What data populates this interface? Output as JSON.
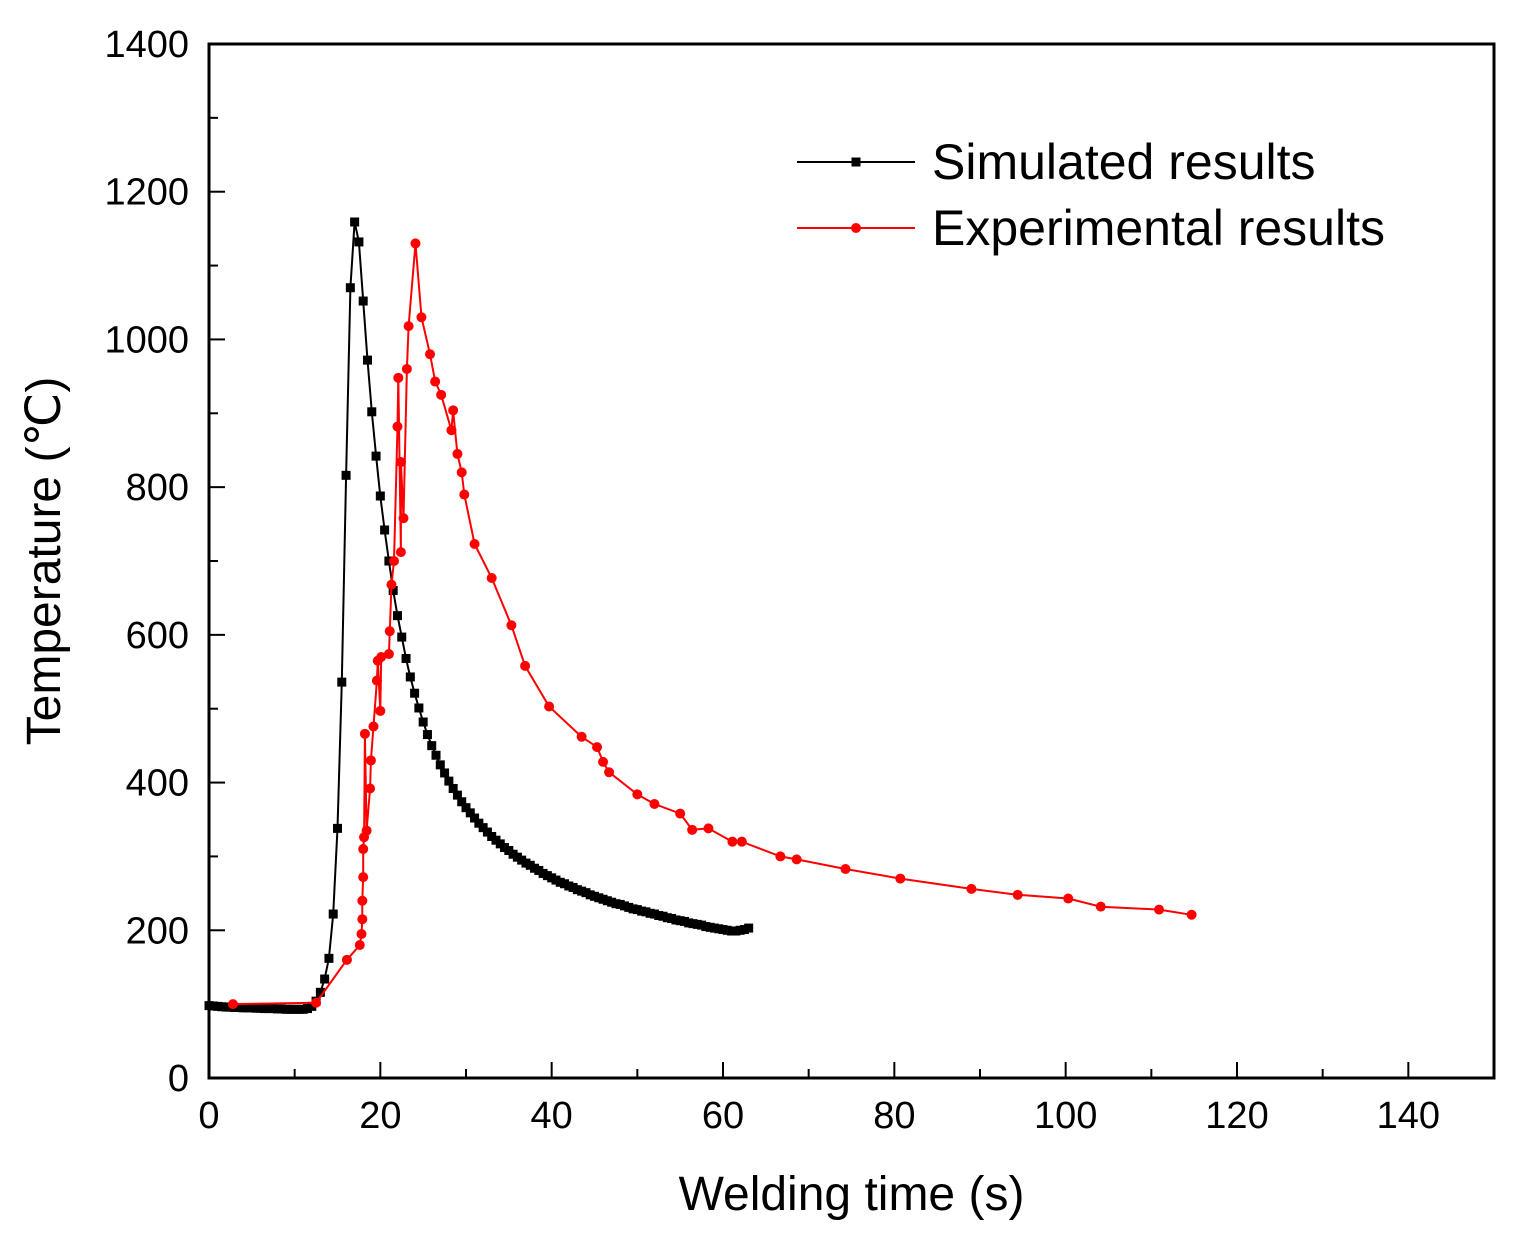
{
  "chart_data": {
    "type": "line",
    "title": "",
    "xlabel": "Welding time (s)",
    "ylabel": "Temperature (℃)",
    "xlim": [
      0,
      150
    ],
    "ylim": [
      0,
      1400
    ],
    "x_major_ticks": [
      0,
      20,
      40,
      60,
      80,
      100,
      120,
      140
    ],
    "y_major_ticks": [
      0,
      200,
      400,
      600,
      800,
      1000,
      1200,
      1400
    ],
    "grid": false,
    "legend_position": "top-right",
    "colors": {
      "simulated": "#000000",
      "experimental": "#ff0000"
    },
    "series": [
      {
        "name": "Simulated results",
        "marker": "square",
        "color": "#000000",
        "points": [
          [
            0,
            98
          ],
          [
            0.5,
            97.5
          ],
          [
            1,
            97
          ],
          [
            1.5,
            96.5
          ],
          [
            2,
            96
          ],
          [
            2.5,
            96
          ],
          [
            3,
            95.5
          ],
          [
            3.5,
            95.5
          ],
          [
            4,
            95
          ],
          [
            4.5,
            95
          ],
          [
            5,
            95
          ],
          [
            5.5,
            94.5
          ],
          [
            6,
            94.5
          ],
          [
            6.5,
            94
          ],
          [
            7,
            94
          ],
          [
            7.5,
            94
          ],
          [
            8,
            93.5
          ],
          [
            8.5,
            93.5
          ],
          [
            9,
            93
          ],
          [
            9.5,
            93
          ],
          [
            10,
            93
          ],
          [
            10.5,
            93
          ],
          [
            11,
            93
          ],
          [
            11.5,
            94
          ],
          [
            12,
            97
          ],
          [
            12.5,
            104
          ],
          [
            13,
            116
          ],
          [
            13.5,
            134
          ],
          [
            14,
            162
          ],
          [
            14.5,
            222
          ],
          [
            15,
            338
          ],
          [
            15.5,
            536
          ],
          [
            16,
            816
          ],
          [
            16.5,
            1070
          ],
          [
            17,
            1159
          ],
          [
            17.5,
            1132
          ],
          [
            18,
            1052
          ],
          [
            18.5,
            972
          ],
          [
            19,
            902
          ],
          [
            19.5,
            842
          ],
          [
            20,
            788
          ],
          [
            20.5,
            742
          ],
          [
            21,
            700
          ],
          [
            21.5,
            660
          ],
          [
            22,
            626
          ],
          [
            22.5,
            597
          ],
          [
            23,
            568
          ],
          [
            23.5,
            543
          ],
          [
            24,
            521
          ],
          [
            24.5,
            501
          ],
          [
            25,
            482
          ],
          [
            25.5,
            465
          ],
          [
            26,
            450
          ],
          [
            26.5,
            437
          ],
          [
            27,
            424
          ],
          [
            27.5,
            413
          ],
          [
            28,
            402
          ],
          [
            28.5,
            392
          ],
          [
            29,
            383
          ],
          [
            29.5,
            374
          ],
          [
            30,
            366
          ],
          [
            30.5,
            359
          ],
          [
            31,
            352
          ],
          [
            31.5,
            345
          ],
          [
            32,
            339
          ],
          [
            32.5,
            333
          ],
          [
            33,
            327
          ],
          [
            33.5,
            322
          ],
          [
            34,
            317
          ],
          [
            34.5,
            312
          ],
          [
            35,
            308
          ],
          [
            35.5,
            303
          ],
          [
            36,
            299
          ],
          [
            36.5,
            295
          ],
          [
            37,
            291
          ],
          [
            37.5,
            288
          ],
          [
            38,
            284
          ],
          [
            38.5,
            281
          ],
          [
            39,
            277
          ],
          [
            39.5,
            274
          ],
          [
            40,
            271
          ],
          [
            40.5,
            268
          ],
          [
            41,
            265
          ],
          [
            41.5,
            263
          ],
          [
            42,
            260
          ],
          [
            42.5,
            258
          ],
          [
            43,
            255
          ],
          [
            43.5,
            253
          ],
          [
            44,
            251
          ],
          [
            44.5,
            248
          ],
          [
            45,
            246
          ],
          [
            45.5,
            244
          ],
          [
            46,
            242
          ],
          [
            46.5,
            240
          ],
          [
            47,
            238
          ],
          [
            47.5,
            236
          ],
          [
            48,
            235
          ],
          [
            48.5,
            233
          ],
          [
            49,
            231
          ],
          [
            49.5,
            229
          ],
          [
            50,
            228
          ],
          [
            50.5,
            226
          ],
          [
            51,
            225
          ],
          [
            51.5,
            223
          ],
          [
            52,
            222
          ],
          [
            52.5,
            220
          ],
          [
            53,
            219
          ],
          [
            53.5,
            217
          ],
          [
            54,
            216
          ],
          [
            54.5,
            214
          ],
          [
            55,
            213
          ],
          [
            55.5,
            212
          ],
          [
            56,
            210
          ],
          [
            56.5,
            209
          ],
          [
            57,
            208
          ],
          [
            57.5,
            207
          ],
          [
            58,
            205
          ],
          [
            58.5,
            204
          ],
          [
            59,
            203
          ],
          [
            59.5,
            202
          ],
          [
            60,
            201
          ],
          [
            60.5,
            200
          ],
          [
            61,
            199
          ],
          [
            61.5,
            199
          ],
          [
            62,
            200
          ],
          [
            62.5,
            201
          ],
          [
            63,
            203
          ]
        ]
      },
      {
        "name": "Experimental results",
        "marker": "circle",
        "color": "#ff0000",
        "points": [
          [
            2.8,
            100
          ],
          [
            12.5,
            102
          ],
          [
            16.1,
            160
          ],
          [
            17.6,
            180
          ],
          [
            17.8,
            195
          ],
          [
            17.9,
            215
          ],
          [
            17.9,
            240
          ],
          [
            18,
            272
          ],
          [
            18,
            310
          ],
          [
            18.1,
            326
          ],
          [
            18.2,
            466
          ],
          [
            18.4,
            335
          ],
          [
            18.8,
            392
          ],
          [
            18.9,
            430
          ],
          [
            19.2,
            476
          ],
          [
            19.6,
            538
          ],
          [
            19.7,
            565
          ],
          [
            20,
            497
          ],
          [
            20.1,
            570
          ],
          [
            21,
            574
          ],
          [
            21.1,
            605
          ],
          [
            21.3,
            668
          ],
          [
            21.6,
            700
          ],
          [
            22,
            882
          ],
          [
            22.1,
            948
          ],
          [
            22.4,
            712
          ],
          [
            22.4,
            834
          ],
          [
            22.7,
            758
          ],
          [
            23.1,
            960
          ],
          [
            23.3,
            1018
          ],
          [
            24.1,
            1130
          ],
          [
            24.8,
            1030
          ],
          [
            25.8,
            980
          ],
          [
            26.4,
            943
          ],
          [
            27.1,
            925
          ],
          [
            28.3,
            877
          ],
          [
            28.5,
            904
          ],
          [
            29,
            845
          ],
          [
            29.5,
            820
          ],
          [
            29.8,
            790
          ],
          [
            31,
            723
          ],
          [
            33,
            677
          ],
          [
            35.3,
            613
          ],
          [
            36.9,
            558
          ],
          [
            39.7,
            503
          ],
          [
            43.5,
            462
          ],
          [
            45.3,
            448
          ],
          [
            46,
            428
          ],
          [
            46.7,
            414
          ],
          [
            50,
            384
          ],
          [
            52,
            371
          ],
          [
            55,
            358
          ],
          [
            56.4,
            336
          ],
          [
            58.3,
            338
          ],
          [
            61.1,
            320
          ],
          [
            62.2,
            320
          ],
          [
            66.7,
            300
          ],
          [
            68.6,
            296
          ],
          [
            74.3,
            283
          ],
          [
            80.7,
            270
          ],
          [
            89,
            256
          ],
          [
            94.4,
            248
          ],
          [
            100.3,
            243
          ],
          [
            104.1,
            232
          ],
          [
            110.9,
            228
          ],
          [
            114.7,
            221
          ]
        ]
      }
    ]
  }
}
